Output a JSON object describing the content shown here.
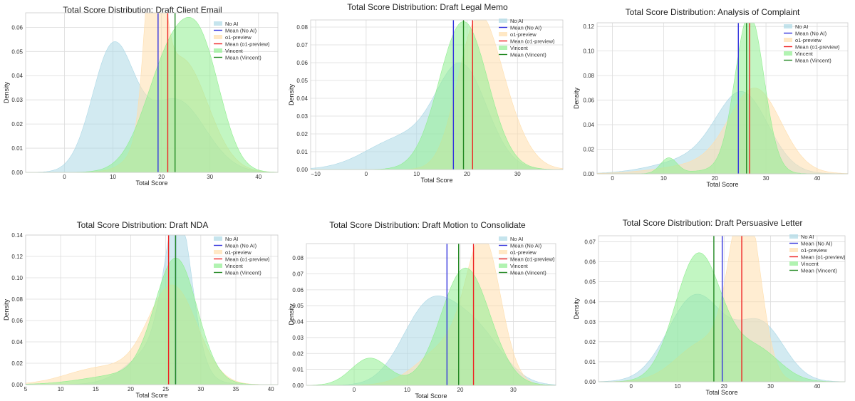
{
  "chart_data": [
    {
      "type": "area",
      "title": "Total Score Distribution: Draft Client Email",
      "xlabel": "Total Score",
      "ylabel": "Density",
      "xlim": [
        -8,
        44
      ],
      "ylim": [
        0,
        0.066
      ],
      "xticks": [
        0,
        10,
        20,
        30,
        40
      ],
      "yticks": [
        0.0,
        0.01,
        0.02,
        0.03,
        0.04,
        0.05,
        0.06
      ],
      "legend": "top-right",
      "series": [
        {
          "name": "No AI",
          "color": "#add8e6",
          "components": [
            [
              0.55,
              10,
              4.3
            ],
            [
              0.45,
              23,
              6.0
            ]
          ]
        },
        {
          "name": "o1-preview",
          "color": "#ffdead",
          "components": [
            [
              0.35,
              18.5,
              1.8
            ],
            [
              0.65,
              24,
              5.5
            ]
          ]
        },
        {
          "name": "Vincent",
          "color": "#90ee90",
          "components": [
            [
              0.7,
              22.5,
              5.5
            ],
            [
              0.3,
              29,
              4.0
            ]
          ]
        }
      ],
      "means": [
        {
          "name": "Mean (No AI)",
          "color": "#3333dd",
          "value": 19.3
        },
        {
          "name": "Mean (o1-preview)",
          "color": "#ee2222",
          "value": 21.3
        },
        {
          "name": "Mean (Vincent)",
          "color": "#228822",
          "value": 22.8
        }
      ]
    },
    {
      "type": "area",
      "title": "Total Score Distribution: Draft Legal Memo",
      "xlabel": "Total Score",
      "ylabel": "Density",
      "xlim": [
        -11,
        39
      ],
      "ylim": [
        0,
        0.084
      ],
      "xticks": [
        -10,
        0,
        10,
        20,
        30
      ],
      "yticks": [
        0.0,
        0.01,
        0.02,
        0.03,
        0.04,
        0.05,
        0.06,
        0.07,
        0.08
      ],
      "xtick_labels": [
        "−10",
        "0",
        "10",
        "20",
        "30"
      ],
      "legend": "top-right",
      "series": [
        {
          "name": "No AI",
          "color": "#add8e6",
          "components": [
            [
              0.7,
              19,
              5.0
            ],
            [
              0.3,
              7,
              7.0
            ]
          ]
        },
        {
          "name": "o1-preview",
          "color": "#ffdead",
          "components": [
            [
              0.6,
              21.5,
              3.8
            ],
            [
              0.4,
              26,
              4.5
            ]
          ]
        },
        {
          "name": "Vincent",
          "color": "#90ee90",
          "components": [
            [
              1.0,
              19.3,
              4.8
            ]
          ]
        }
      ],
      "means": [
        {
          "name": "Mean (No AI)",
          "color": "#3333dd",
          "value": 17.3
        },
        {
          "name": "Mean (o1-preview)",
          "color": "#ee2222",
          "value": 21.1
        },
        {
          "name": "Mean (Vincent)",
          "color": "#228822",
          "value": 19.3
        }
      ]
    },
    {
      "type": "area",
      "title": "Total Score Distribution: Analysis of Complaint",
      "xlabel": "Total Score",
      "ylabel": "Density",
      "xlim": [
        -3,
        46
      ],
      "ylim": [
        0,
        0.123
      ],
      "xticks": [
        0,
        10,
        20,
        30,
        40
      ],
      "yticks": [
        0.0,
        0.02,
        0.04,
        0.06,
        0.08,
        0.1,
        0.12
      ],
      "legend": "top-right",
      "series": [
        {
          "name": "No AI",
          "color": "#add8e6",
          "components": [
            [
              0.75,
              25.5,
              5.0
            ],
            [
              0.25,
              17,
              8.0
            ]
          ]
        },
        {
          "name": "o1-preview",
          "color": "#ffdead",
          "components": [
            [
              0.8,
              28,
              5.0
            ],
            [
              0.2,
              20,
              9.0
            ]
          ]
        },
        {
          "name": "Vincent",
          "color": "#90ee90",
          "components": [
            [
              0.9,
              26.8,
              2.8
            ],
            [
              0.05,
              11,
              1.6
            ],
            [
              0.05,
              22,
              6.0
            ]
          ]
        }
      ],
      "means": [
        {
          "name": "Mean (No AI)",
          "color": "#3333dd",
          "value": 24.6
        },
        {
          "name": "Mean (o1-preview)",
          "color": "#ee2222",
          "value": 26.8
        },
        {
          "name": "Mean (Vincent)",
          "color": "#228822",
          "value": 26.2
        }
      ]
    },
    {
      "type": "area",
      "title": "Total Score Distribution: Draft NDA",
      "xlabel": "Total Score",
      "ylabel": "Density",
      "xlim": [
        5,
        41
      ],
      "ylim": [
        0,
        0.14
      ],
      "xticks": [
        5,
        10,
        15,
        20,
        25,
        30,
        35,
        40
      ],
      "yticks": [
        0.0,
        0.02,
        0.04,
        0.06,
        0.08,
        0.1,
        0.12,
        0.14
      ],
      "legend": "top-right",
      "series": [
        {
          "name": "No AI",
          "color": "#add8e6",
          "components": [
            [
              0.65,
              26.8,
              1.9
            ],
            [
              0.35,
              24,
              4.0
            ]
          ]
        },
        {
          "name": "o1-preview",
          "color": "#ffdead",
          "components": [
            [
              0.8,
              26,
              3.5
            ],
            [
              0.2,
              16,
              5.0
            ]
          ]
        },
        {
          "name": "Vincent",
          "color": "#90ee90",
          "components": [
            [
              0.85,
              26.5,
              3.0
            ],
            [
              0.15,
              20,
              6.0
            ]
          ]
        }
      ],
      "means": [
        {
          "name": "Mean (No AI)",
          "color": "#3333dd",
          "value": 26.4
        },
        {
          "name": "Mean (o1-preview)",
          "color": "#ee2222",
          "value": 25.4
        },
        {
          "name": "Mean (Vincent)",
          "color": "#228822",
          "value": 26.4
        }
      ]
    },
    {
      "type": "area",
      "title": "Total Score Distribution: Draft Motion to Consolidate",
      "xlabel": "Total Score",
      "ylabel": "Density",
      "xlim": [
        -9,
        38
      ],
      "ylim": [
        0,
        0.089
      ],
      "xticks": [
        0,
        10,
        20,
        30
      ],
      "yticks": [
        0.0,
        0.01,
        0.02,
        0.03,
        0.04,
        0.05,
        0.06,
        0.07,
        0.08
      ],
      "legend": "top-right",
      "series": [
        {
          "name": "No AI",
          "color": "#add8e6",
          "components": [
            [
              0.6,
              14,
              5.0
            ],
            [
              0.4,
              23,
              5.0
            ]
          ]
        },
        {
          "name": "o1-preview",
          "color": "#ffdead",
          "components": [
            [
              0.65,
              24.5,
              3.2
            ],
            [
              0.35,
              18,
              5.5
            ]
          ]
        },
        {
          "name": "Vincent",
          "color": "#90ee90",
          "components": [
            [
              0.85,
              21,
              4.6
            ],
            [
              0.15,
              3,
              3.5
            ]
          ]
        }
      ],
      "means": [
        {
          "name": "Mean (No AI)",
          "color": "#3333dd",
          "value": 17.5
        },
        {
          "name": "Mean (o1-preview)",
          "color": "#ee2222",
          "value": 22.5
        },
        {
          "name": "Mean (Vincent)",
          "color": "#228822",
          "value": 19.7
        }
      ]
    },
    {
      "type": "area",
      "title": "Total Score Distribution: Draft Persuasive Letter",
      "xlabel": "Total Score",
      "ylabel": "Density",
      "xlim": [
        -7,
        46
      ],
      "ylim": [
        0,
        0.073
      ],
      "xticks": [
        0,
        10,
        20,
        30,
        40
      ],
      "yticks": [
        0.0,
        0.01,
        0.02,
        0.03,
        0.04,
        0.05,
        0.06,
        0.07
      ],
      "legend": "top-left",
      "series": [
        {
          "name": "No AI",
          "color": "#add8e6",
          "components": [
            [
              0.65,
              14,
              6.0
            ],
            [
              0.35,
              28,
              5.0
            ]
          ]
        },
        {
          "name": "o1-preview",
          "color": "#ffdead",
          "components": [
            [
              0.7,
              24.5,
              3.2
            ],
            [
              0.3,
              16,
              6.0
            ]
          ]
        },
        {
          "name": "Vincent",
          "color": "#90ee90",
          "components": [
            [
              0.8,
              14.5,
              5.0
            ],
            [
              0.2,
              27,
              5.0
            ]
          ]
        }
      ],
      "means": [
        {
          "name": "Mean (No AI)",
          "color": "#3333dd",
          "value": 19.6
        },
        {
          "name": "Mean (o1-preview)",
          "color": "#ee2222",
          "value": 23.8
        },
        {
          "name": "Mean (Vincent)",
          "color": "#228822",
          "value": 17.8
        }
      ]
    }
  ]
}
